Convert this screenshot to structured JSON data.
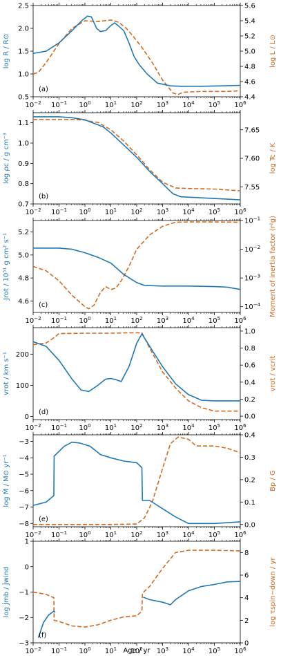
{
  "colors": {
    "left": "#1f77b4",
    "right": "#d2691e"
  },
  "xaxis": {
    "label": "Age / yr",
    "scale": "log",
    "lim": [
      0.01,
      1000000
    ],
    "ticks": [
      0.01,
      0.1,
      1,
      10,
      100,
      1000,
      10000,
      100000,
      1000000
    ],
    "tick_labels": [
      {
        "base": "10",
        "exp": "−2"
      },
      {
        "base": "10",
        "exp": "−1"
      },
      {
        "base": "10",
        "exp": "0"
      },
      {
        "base": "10",
        "exp": "1"
      },
      {
        "base": "10",
        "exp": "2"
      },
      {
        "base": "10",
        "exp": "3"
      },
      {
        "base": "10",
        "exp": "4"
      },
      {
        "base": "10",
        "exp": "5"
      },
      {
        "base": "10",
        "exp": "6"
      }
    ]
  },
  "chart_data": [
    {
      "type": "line",
      "panel": "(a)",
      "left": {
        "label": "log R / R⊙",
        "lim": [
          0.5,
          2.5
        ],
        "ticks": [
          0.5,
          1.0,
          1.5,
          2.0,
          2.5
        ],
        "tick_labels": [
          "0.5",
          "1.0",
          "1.5",
          "2.0",
          "2.5"
        ],
        "series": [
          [
            -2,
            1.45
          ],
          [
            -1.5,
            1.5
          ],
          [
            -1,
            1.68
          ],
          [
            -0.5,
            1.95
          ],
          [
            -0.1,
            2.18
          ],
          [
            0.1,
            2.27
          ],
          [
            0.25,
            2.25
          ],
          [
            0.45,
            2.0
          ],
          [
            0.6,
            1.93
          ],
          [
            0.8,
            1.95
          ],
          [
            1.0,
            2.06
          ],
          [
            1.15,
            2.12
          ],
          [
            1.3,
            2.05
          ],
          [
            1.5,
            1.95
          ],
          [
            1.7,
            1.68
          ],
          [
            1.9,
            1.38
          ],
          [
            2.1,
            1.2
          ],
          [
            2.4,
            1.0
          ],
          [
            2.8,
            0.8
          ],
          [
            3.3,
            0.74
          ],
          [
            3.7,
            0.73
          ],
          [
            4.5,
            0.73
          ],
          [
            5.3,
            0.74
          ],
          [
            6,
            0.75
          ]
        ]
      },
      "right": {
        "label": "log L / L⊙",
        "lim": [
          4.4,
          5.6
        ],
        "ticks": [
          4.4,
          4.6,
          4.8,
          5.0,
          5.2,
          5.4,
          5.6
        ],
        "tick_labels": [
          "4.4",
          "4.6",
          "4.8",
          "5.0",
          "5.2",
          "5.4",
          "5.6"
        ],
        "series": [
          [
            -2,
            4.7
          ],
          [
            -1.8,
            4.72
          ],
          [
            -1.5,
            4.85
          ],
          [
            -1,
            5.1
          ],
          [
            -0.5,
            5.3
          ],
          [
            0,
            5.4
          ],
          [
            0.5,
            5.39
          ],
          [
            1,
            5.41
          ],
          [
            1.3,
            5.38
          ],
          [
            1.6,
            5.3
          ],
          [
            1.9,
            5.18
          ],
          [
            2.2,
            5.05
          ],
          [
            2.6,
            4.85
          ],
          [
            3.0,
            4.62
          ],
          [
            3.4,
            4.45
          ],
          [
            3.6,
            4.43
          ],
          [
            3.8,
            4.46
          ],
          [
            4.5,
            4.47
          ],
          [
            5.0,
            4.47
          ],
          [
            5.5,
            4.47
          ],
          [
            6,
            4.48
          ]
        ]
      }
    },
    {
      "type": "line",
      "panel": "(b)",
      "left": {
        "label": "log ρc / g cm⁻³",
        "lim": [
          0.7,
          1.15
        ],
        "ticks": [
          0.7,
          0.8,
          0.9,
          1.0,
          1.1
        ],
        "tick_labels": [
          "0.7",
          "0.8",
          "0.9",
          "1.0",
          "1.1"
        ],
        "series": [
          [
            -2,
            1.13
          ],
          [
            -1,
            1.13
          ],
          [
            -0.5,
            1.125
          ],
          [
            0,
            1.115
          ],
          [
            0.3,
            1.1
          ],
          [
            0.7,
            1.08
          ],
          [
            1,
            1.05
          ],
          [
            1.5,
            0.99
          ],
          [
            2,
            0.93
          ],
          [
            2.5,
            0.86
          ],
          [
            3,
            0.8
          ],
          [
            3.4,
            0.75
          ],
          [
            3.7,
            0.735
          ],
          [
            4.5,
            0.73
          ],
          [
            5.3,
            0.725
          ],
          [
            6,
            0.72
          ]
        ]
      },
      "right": {
        "label": "log Tc / K",
        "lim": [
          7.52,
          7.68
        ],
        "ticks": [
          7.55,
          7.6,
          7.65
        ],
        "tick_labels": [
          "7.55",
          "7.60",
          "7.65"
        ],
        "series": [
          [
            -2,
            7.668
          ],
          [
            -1,
            7.668
          ],
          [
            -0.5,
            7.668
          ],
          [
            0,
            7.667
          ],
          [
            0.3,
            7.664
          ],
          [
            0.5,
            7.663
          ],
          [
            1,
            7.65
          ],
          [
            1.5,
            7.63
          ],
          [
            2,
            7.606
          ],
          [
            2.5,
            7.58
          ],
          [
            3,
            7.558
          ],
          [
            3.5,
            7.548
          ],
          [
            4,
            7.547
          ],
          [
            5,
            7.546
          ],
          [
            6,
            7.543
          ]
        ]
      }
    },
    {
      "type": "line",
      "panel": "(c)",
      "left": {
        "label": "Jrot / 10⁵¹ g cm² s⁻¹",
        "lim": [
          4.5,
          5.3
        ],
        "ticks": [
          4.6,
          4.8,
          5.0,
          5.2
        ],
        "tick_labels": [
          "4.6",
          "4.8",
          "5.0",
          "5.2"
        ],
        "series": [
          [
            -2,
            5.06
          ],
          [
            -1,
            5.06
          ],
          [
            -0.5,
            5.05
          ],
          [
            0,
            5.02
          ],
          [
            0.5,
            4.98
          ],
          [
            1,
            4.93
          ],
          [
            1.5,
            4.83
          ],
          [
            2,
            4.76
          ],
          [
            2.3,
            4.735
          ],
          [
            3,
            4.73
          ],
          [
            4,
            4.73
          ],
          [
            5,
            4.725
          ],
          [
            5.5,
            4.72
          ],
          [
            6,
            4.7
          ]
        ]
      },
      "right": {
        "label": "Moment of inertia factor (r²g)",
        "scale": "log",
        "lim": [
          -4.2,
          -1
        ],
        "ticks": [
          -4,
          -3,
          -2,
          -1
        ],
        "tick_labels": [
          {
            "base": "10",
            "exp": "−4"
          },
          {
            "base": "10",
            "exp": "−3"
          },
          {
            "base": "10",
            "exp": "−2"
          },
          {
            "base": "10",
            "exp": "−1"
          }
        ],
        "series": [
          [
            -2,
            -2.6
          ],
          [
            -1.5,
            -2.75
          ],
          [
            -1,
            -3.1
          ],
          [
            -0.5,
            -3.6
          ],
          [
            0,
            -4.0
          ],
          [
            0.15,
            -4.07
          ],
          [
            0.35,
            -3.95
          ],
          [
            0.6,
            -3.5
          ],
          [
            0.8,
            -3.3
          ],
          [
            1.0,
            -3.4
          ],
          [
            1.2,
            -3.35
          ],
          [
            1.4,
            -3.1
          ],
          [
            1.7,
            -2.6
          ],
          [
            2.0,
            -2.0
          ],
          [
            2.5,
            -1.5
          ],
          [
            3,
            -1.2
          ],
          [
            3.5,
            -1.06
          ],
          [
            4,
            -1.05
          ],
          [
            5,
            -1.05
          ],
          [
            6,
            -1.06
          ]
        ]
      }
    },
    {
      "type": "line",
      "panel": "(d)",
      "left": {
        "label": "vrot / km s⁻¹",
        "lim": [
          -10,
          285
        ],
        "ticks": [
          0,
          100,
          200
        ],
        "tick_labels": [
          "0",
          "100",
          "200"
        ],
        "series": [
          [
            -2,
            240
          ],
          [
            -1.5,
            225
          ],
          [
            -1,
            180
          ],
          [
            -0.5,
            120
          ],
          [
            -0.15,
            85
          ],
          [
            0.15,
            80
          ],
          [
            0.5,
            100
          ],
          [
            0.8,
            120
          ],
          [
            1.0,
            122
          ],
          [
            1.2,
            118
          ],
          [
            1.4,
            112
          ],
          [
            1.7,
            160
          ],
          [
            2.0,
            235
          ],
          [
            2.2,
            265
          ],
          [
            2.5,
            225
          ],
          [
            3.0,
            160
          ],
          [
            3.5,
            105
          ],
          [
            4.0,
            70
          ],
          [
            4.5,
            52
          ],
          [
            5,
            50
          ],
          [
            6,
            50
          ]
        ]
      },
      "right": {
        "label": "vrot / vcrit",
        "lim": [
          -0.04,
          1.04
        ],
        "ticks": [
          0,
          0.2,
          0.4,
          0.6,
          0.8,
          1.0
        ],
        "tick_labels": [
          "0.0",
          "0.2",
          "0.4",
          "0.6",
          "0.8",
          "1.0"
        ],
        "series": [
          [
            -2,
            0.84
          ],
          [
            -1.5,
            0.86
          ],
          [
            -1.25,
            0.91
          ],
          [
            -1,
            0.97
          ],
          [
            0,
            0.975
          ],
          [
            1,
            0.975
          ],
          [
            1.7,
            0.98
          ],
          [
            2.2,
            0.98
          ],
          [
            2.5,
            0.8
          ],
          [
            3,
            0.52
          ],
          [
            3.5,
            0.33
          ],
          [
            4,
            0.18
          ],
          [
            4.5,
            0.1
          ],
          [
            5,
            0.06
          ],
          [
            6,
            0.06
          ]
        ]
      }
    },
    {
      "type": "line",
      "panel": "(e)",
      "left": {
        "label": "log Ṁ / M⊙ yr⁻¹",
        "lim": [
          -8.2,
          -2.6
        ],
        "ticks": [
          -8,
          -7,
          -6,
          -5,
          -4,
          -3
        ],
        "tick_labels": [
          "−8",
          "−7",
          "−6",
          "−5",
          "−4",
          "−3"
        ],
        "series": [
          [
            -2,
            -6.9
          ],
          [
            -1.5,
            -6.7
          ],
          [
            -1.2,
            -6.3
          ],
          [
            -1.19,
            -3.9
          ],
          [
            -0.8,
            -3.3
          ],
          [
            -0.5,
            -3.05
          ],
          [
            -0.2,
            -3.1
          ],
          [
            0.2,
            -3.3
          ],
          [
            0.6,
            -3.8
          ],
          [
            1.0,
            -4.0
          ],
          [
            1.5,
            -4.2
          ],
          [
            2.0,
            -4.3
          ],
          [
            2.2,
            -4.6
          ],
          [
            2.22,
            -6.6
          ],
          [
            2.5,
            -6.6
          ],
          [
            3.0,
            -7.1
          ],
          [
            3.5,
            -7.6
          ],
          [
            4,
            -8.0
          ],
          [
            5,
            -8.0
          ],
          [
            6,
            -7.9
          ]
        ]
      },
      "right": {
        "label": "Bp / G",
        "lim": [
          -0.01,
          0.4
        ],
        "ticks": [
          0,
          0.1,
          0.2,
          0.3,
          0.4
        ],
        "tick_labels": [
          "0.0",
          "0.1",
          "0.2",
          "0.3",
          "0.4"
        ],
        "series": [
          [
            -2,
            0
          ],
          [
            1,
            0
          ],
          [
            2,
            0.002
          ],
          [
            2.3,
            0.03
          ],
          [
            2.6,
            0.1
          ],
          [
            3,
            0.25
          ],
          [
            3.3,
            0.36
          ],
          [
            3.6,
            0.39
          ],
          [
            4,
            0.38
          ],
          [
            4.3,
            0.35
          ],
          [
            5,
            0.35
          ],
          [
            5.5,
            0.34
          ],
          [
            6,
            0.32
          ]
        ]
      }
    },
    {
      "type": "line",
      "panel": "(f)",
      "left": {
        "label": "log J̇mb / J̇wind",
        "lim": [
          -3,
          1
        ],
        "ticks": [
          -3,
          -2,
          -1,
          0,
          1
        ],
        "tick_labels": [
          "−3",
          "−2",
          "−1",
          "0",
          "1"
        ],
        "series": [
          [
            -1.8,
            -2.8
          ],
          [
            -1.6,
            -2.2
          ],
          [
            -1.4,
            -1.9
          ],
          [
            -1.2,
            -1.75
          ],
          [
            -1.15,
            -1.8
          ]
        ],
        "series2": [
          [
            2.25,
            -1.2
          ],
          [
            2.5,
            -1.3
          ],
          [
            3.0,
            -1.4
          ],
          [
            3.3,
            -1.5
          ],
          [
            3.5,
            -1.3
          ],
          [
            4.0,
            -0.95
          ],
          [
            4.5,
            -0.78
          ],
          [
            5,
            -0.7
          ],
          [
            5.5,
            -0.6
          ],
          [
            6,
            -0.58
          ]
        ]
      },
      "right": {
        "label": "log τspin−down / yr",
        "lim": [
          0,
          9
        ],
        "ticks": [
          0,
          2,
          4,
          6,
          8
        ],
        "tick_labels": [
          "0",
          "2",
          "4",
          "6",
          "8"
        ],
        "series": [
          [
            -2,
            4.5
          ],
          [
            -1.5,
            4.3
          ],
          [
            -1.2,
            4.0
          ],
          [
            -1.19,
            2.0
          ],
          [
            -1.0,
            1.9
          ],
          [
            -0.5,
            1.5
          ],
          [
            0,
            1.4
          ],
          [
            0.5,
            1.6
          ],
          [
            1.0,
            2.0
          ],
          [
            1.5,
            2.3
          ],
          [
            2.0,
            2.4
          ],
          [
            2.2,
            2.8
          ],
          [
            2.22,
            4.4
          ],
          [
            2.5,
            5.0
          ],
          [
            3.0,
            6.6
          ],
          [
            3.5,
            8.0
          ],
          [
            4,
            8.2
          ],
          [
            5,
            8.2
          ],
          [
            6,
            8.15
          ]
        ]
      }
    }
  ]
}
